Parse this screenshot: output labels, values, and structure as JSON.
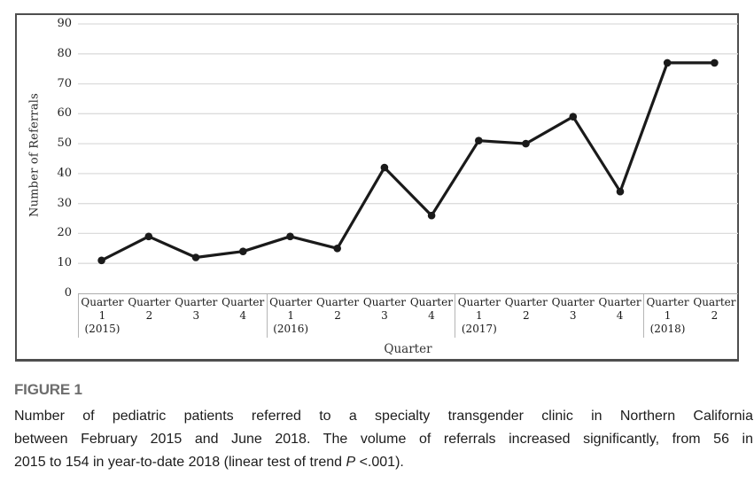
{
  "chart_data": {
    "type": "line",
    "title": "",
    "xlabel": "Quarter",
    "ylabel": "Number of Referrals",
    "ylim": [
      0,
      90
    ],
    "yticks": [
      0,
      10,
      20,
      30,
      40,
      50,
      60,
      70,
      80,
      90
    ],
    "grid": true,
    "legend": false,
    "line_color": "#1a1a1a",
    "marker": "circle",
    "categories": [
      "Quarter 1 (2015)",
      "Quarter 2",
      "Quarter 3",
      "Quarter 4",
      "Quarter 1 (2016)",
      "Quarter 2",
      "Quarter 3",
      "Quarter 4",
      "Quarter 1 (2017)",
      "Quarter 2",
      "Quarter 3",
      "Quarter 4",
      "Quarter 1 (2018)",
      "Quarter 2"
    ],
    "values": [
      11,
      19,
      12,
      14,
      19,
      15,
      42,
      26,
      51,
      50,
      59,
      34,
      77,
      77
    ],
    "year_group_starts": [
      0,
      4,
      8,
      12
    ],
    "yearly_totals_noted_in_caption": {
      "2015": 56,
      "2018_ytd": 154
    }
  },
  "caption": {
    "label": "FIGURE 1",
    "lines": [
      "Number of pediatric patients referred to a specialty transgender clinic in Northern California",
      "between February 2015 and June 2018. The volume of referrals increased significantly, from 56 in"
    ],
    "line3_before_italic": "2015 to 154 in year-to-date 2018 (linear test of trend ",
    "line3_italic": "P",
    "line3_after_italic": " <.001)."
  }
}
